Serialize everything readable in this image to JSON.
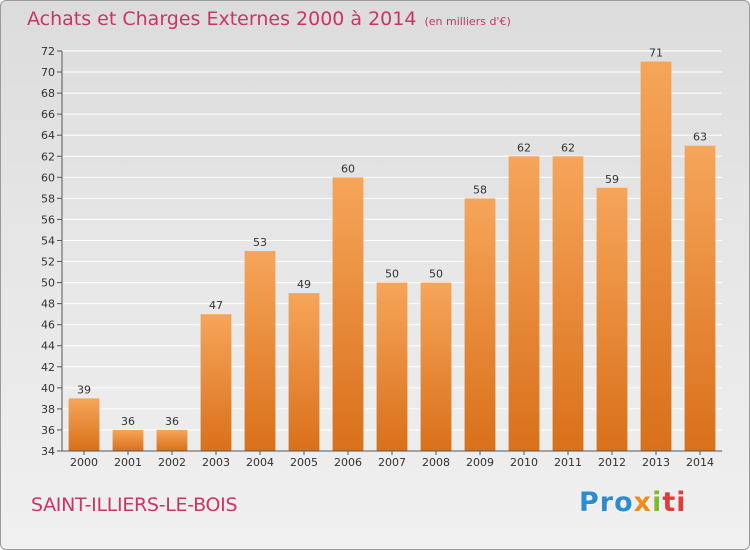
{
  "header": {
    "title": "Achats et Charges Externes 2000 à 2014",
    "subtitle": "(en milliers d'€)"
  },
  "footer": {
    "commune": "SAINT-ILLIERS-LE-BOIS",
    "logo": [
      "Pro",
      "x",
      "i",
      "ti"
    ]
  },
  "colors": {
    "title": "#cc3366",
    "bar_light": "#f6a55a",
    "bar_dark": "#d9701a",
    "grid": "#ffffff"
  },
  "chart_data": {
    "type": "bar",
    "title": "Achats et Charges Externes 2000 à 2014",
    "subtitle": "(en milliers d'€)",
    "xlabel": "",
    "ylabel": "",
    "categories": [
      "2000",
      "2001",
      "2002",
      "2003",
      "2004",
      "2005",
      "2006",
      "2007",
      "2008",
      "2009",
      "2010",
      "2011",
      "2012",
      "2013",
      "2014"
    ],
    "values": [
      39,
      36,
      36,
      47,
      53,
      49,
      60,
      50,
      50,
      58,
      62,
      62,
      59,
      71,
      63
    ],
    "ylim": [
      34,
      72
    ],
    "ytick_step": 2,
    "grid": true,
    "legend": "none"
  }
}
